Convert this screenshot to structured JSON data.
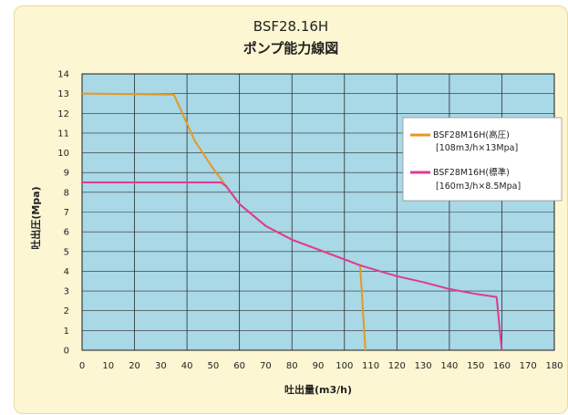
{
  "chart_data": {
    "type": "line",
    "title": "BSF28.16H",
    "subtitle": "ポンプ能力線図",
    "xlabel": "吐出量(m3/h)",
    "ylabel": "吐出圧(Mpa)",
    "xlim": [
      0,
      180
    ],
    "ylim": [
      0,
      14
    ],
    "xticks": [
      0,
      10,
      20,
      30,
      40,
      50,
      60,
      70,
      80,
      90,
      100,
      110,
      120,
      130,
      140,
      150,
      160,
      170,
      180
    ],
    "yticks": [
      0,
      1,
      2,
      3,
      4,
      5,
      6,
      7,
      8,
      9,
      10,
      11,
      12,
      13,
      14
    ],
    "grid": true,
    "background": "#a9d8e6",
    "legend_position": "top-right",
    "series": [
      {
        "name": "BSF28M16H(高圧)",
        "note": "[108m3/h×13Mpa]",
        "color": "#e49a22",
        "points": [
          [
            0,
            13.0
          ],
          [
            35,
            12.95
          ],
          [
            43,
            10.6
          ],
          [
            50,
            9.2
          ],
          [
            55,
            8.3
          ],
          [
            60,
            7.4
          ],
          [
            70,
            6.3
          ],
          [
            80,
            5.6
          ],
          [
            90,
            5.1
          ],
          [
            100,
            4.6
          ],
          [
            106,
            4.3
          ],
          [
            108,
            0
          ]
        ]
      },
      {
        "name": "BSF28M16H(標準)",
        "note": "[160m3/h×8.5Mpa]",
        "color": "#de3a93",
        "points": [
          [
            0,
            8.5
          ],
          [
            53,
            8.5
          ],
          [
            55,
            8.3
          ],
          [
            60,
            7.4
          ],
          [
            70,
            6.3
          ],
          [
            80,
            5.6
          ],
          [
            90,
            5.1
          ],
          [
            100,
            4.6
          ],
          [
            106,
            4.3
          ],
          [
            120,
            3.75
          ],
          [
            130,
            3.45
          ],
          [
            140,
            3.1
          ],
          [
            150,
            2.85
          ],
          [
            158,
            2.7
          ],
          [
            160,
            0
          ]
        ]
      }
    ]
  }
}
